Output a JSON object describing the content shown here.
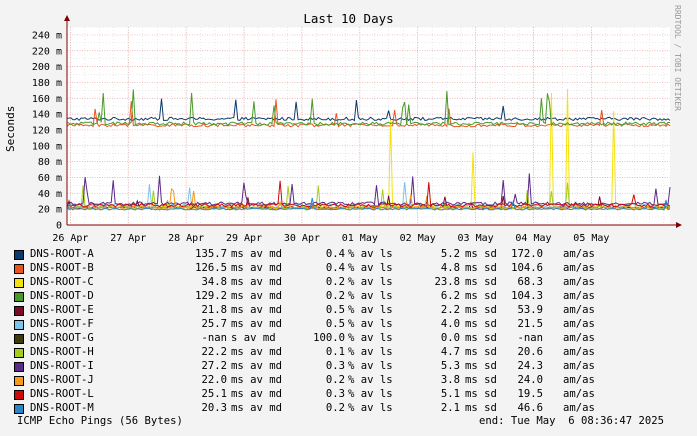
{
  "chart_data": {
    "type": "line",
    "title": "Last 10 Days",
    "ylabel": "Seconds",
    "xlabel": "",
    "ylim": [
      0,
      0.25
    ],
    "y_ticks": [
      {
        "value": 0.0,
        "label": "0"
      },
      {
        "value": 0.02,
        "label": "20 m"
      },
      {
        "value": 0.04,
        "label": "40 m"
      },
      {
        "value": 0.06,
        "label": "60 m"
      },
      {
        "value": 0.08,
        "label": "80 m"
      },
      {
        "value": 0.1,
        "label": "100 m"
      },
      {
        "value": 0.12,
        "label": "120 m"
      },
      {
        "value": 0.14,
        "label": "140 m"
      },
      {
        "value": 0.16,
        "label": "160 m"
      },
      {
        "value": 0.18,
        "label": "180 m"
      },
      {
        "value": 0.2,
        "label": "200 m"
      },
      {
        "value": 0.22,
        "label": "220 m"
      },
      {
        "value": 0.24,
        "label": "240 m"
      }
    ],
    "x_domain": [
      "2025-04-25T22:36",
      "2025-05-06T08:36"
    ],
    "x_ticks": [
      {
        "date": "2025-04-26T00:00",
        "label": "26 Apr"
      },
      {
        "date": "2025-04-27T00:00",
        "label": "27 Apr"
      },
      {
        "date": "2025-04-28T00:00",
        "label": "28 Apr"
      },
      {
        "date": "2025-04-29T00:00",
        "label": "29 Apr"
      },
      {
        "date": "2025-04-30T00:00",
        "label": "30 Apr"
      },
      {
        "date": "2025-05-01T00:00",
        "label": "01 May"
      },
      {
        "date": "2025-05-02T00:00",
        "label": "02 May"
      },
      {
        "date": "2025-05-03T00:00",
        "label": "03 May"
      },
      {
        "date": "2025-05-04T00:00",
        "label": "04 May"
      },
      {
        "date": "2025-05-05T00:00",
        "label": "05 May"
      }
    ],
    "grid": true,
    "legend_position": "bottom",
    "series": [
      {
        "name": "DNS-ROOT-A",
        "color": "#0b3a6b",
        "avg": "135.7",
        "avg_unit": "ms av md",
        "loss": "0.4",
        "loss_unit": "% av ls",
        "sd": "5.2",
        "sd_unit": "ms sd",
        "am": "172.0",
        "am_unit": "am/as",
        "base_ms": 134
      },
      {
        "name": "DNS-ROOT-B",
        "color": "#e8531e",
        "avg": "126.5",
        "avg_unit": "ms av md",
        "loss": "0.4",
        "loss_unit": "% av ls",
        "sd": "4.8",
        "sd_unit": "ms sd",
        "am": "104.6",
        "am_unit": "am/as",
        "base_ms": 126
      },
      {
        "name": "DNS-ROOT-C",
        "color": "#f5e10b",
        "avg": "34.8",
        "avg_unit": "ms av md",
        "loss": "0.2",
        "loss_unit": "% av ls",
        "sd": "23.8",
        "sd_unit": "ms sd",
        "am": "68.3",
        "am_unit": "am/as",
        "base_ms": 22
      },
      {
        "name": "DNS-ROOT-D",
        "color": "#4a9a2a",
        "avg": "129.2",
        "avg_unit": "ms av md",
        "loss": "0.2",
        "loss_unit": "% av ls",
        "sd": "6.2",
        "sd_unit": "ms sd",
        "am": "104.3",
        "am_unit": "am/as",
        "base_ms": 128
      },
      {
        "name": "DNS-ROOT-E",
        "color": "#7a0a26",
        "avg": "21.8",
        "avg_unit": "ms av md",
        "loss": "0.5",
        "loss_unit": "% av ls",
        "sd": "2.2",
        "sd_unit": "ms sd",
        "am": "53.9",
        "am_unit": "am/as",
        "base_ms": 22
      },
      {
        "name": "DNS-ROOT-F",
        "color": "#7fc3ea",
        "avg": "25.7",
        "avg_unit": "ms av md",
        "loss": "0.5",
        "loss_unit": "% av ls",
        "sd": "4.0",
        "sd_unit": "ms sd",
        "am": "21.5",
        "am_unit": "am/as",
        "base_ms": 25
      },
      {
        "name": "DNS-ROOT-G",
        "color": "#3e3a0b",
        "avg": "-nan",
        "avg_unit": "s av md",
        "loss": "100.0",
        "loss_unit": "% av ls",
        "sd": "0.0",
        "sd_unit": "ms sd",
        "am": "-nan",
        "am_unit": "am/as",
        "base_ms": null
      },
      {
        "name": "DNS-ROOT-H",
        "color": "#a6cc1a",
        "avg": "22.2",
        "avg_unit": "ms av md",
        "loss": "0.1",
        "loss_unit": "% av ls",
        "sd": "4.7",
        "sd_unit": "ms sd",
        "am": "20.6",
        "am_unit": "am/as",
        "base_ms": 22
      },
      {
        "name": "DNS-ROOT-I",
        "color": "#5a2a86",
        "avg": "27.2",
        "avg_unit": "ms av md",
        "loss": "0.3",
        "loss_unit": "% av ls",
        "sd": "5.3",
        "sd_unit": "ms sd",
        "am": "24.3",
        "am_unit": "am/as",
        "base_ms": 27
      },
      {
        "name": "DNS-ROOT-J",
        "color": "#f59a1a",
        "avg": "22.0",
        "avg_unit": "ms av md",
        "loss": "0.2",
        "loss_unit": "% av ls",
        "sd": "3.8",
        "sd_unit": "ms sd",
        "am": "24.0",
        "am_unit": "am/as",
        "base_ms": 22
      },
      {
        "name": "DNS-ROOT-L",
        "color": "#cc0a0a",
        "avg": "25.1",
        "avg_unit": "ms av md",
        "loss": "0.3",
        "loss_unit": "% av ls",
        "sd": "5.1",
        "sd_unit": "ms sd",
        "am": "19.5",
        "am_unit": "am/as",
        "base_ms": 25
      },
      {
        "name": "DNS-ROOT-M",
        "color": "#2a86c8",
        "avg": "20.3",
        "avg_unit": "ms av md",
        "loss": "0.2",
        "loss_unit": "% av ls",
        "sd": "2.1",
        "sd_unit": "ms sd",
        "am": "46.6",
        "am_unit": "am/as",
        "base_ms": 20
      }
    ]
  },
  "footer": {
    "left": "ICMP Echo Pings (56 Bytes)",
    "right": "end: Tue May  6 08:36:47 2025"
  },
  "watermark": "RRDTOOL / TOBI OETIKER",
  "colors": {
    "background": "#f3f3f3",
    "plot_background": "#ffffff",
    "grid_major": "#e8a0a0",
    "grid_minor": "#dcdcdc",
    "axis": "#800000"
  }
}
